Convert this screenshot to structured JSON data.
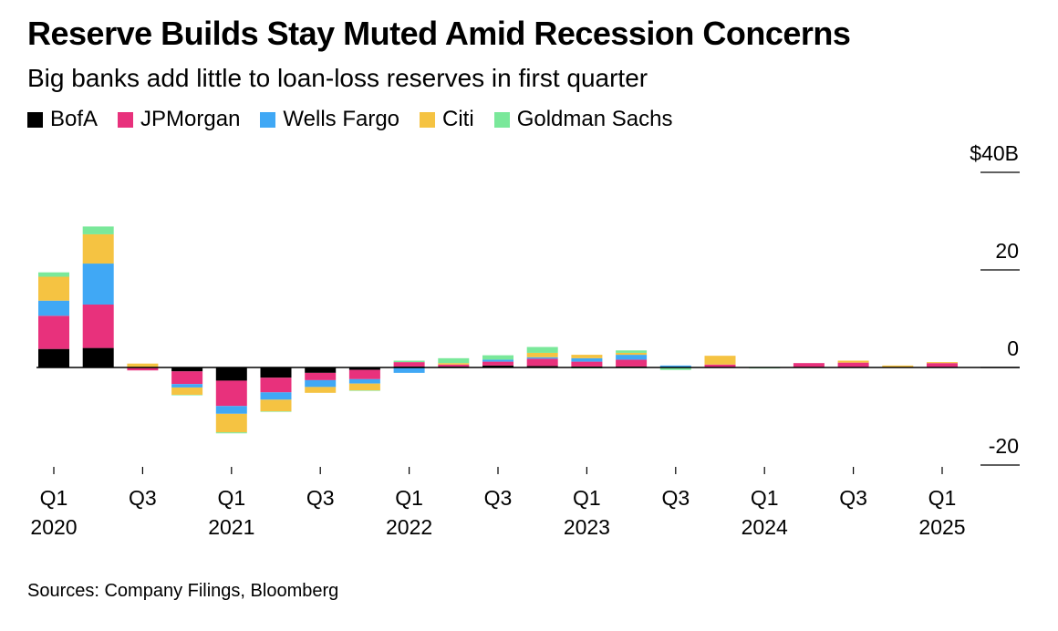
{
  "title": "Reserve Builds Stay Muted Amid Recession Concerns",
  "subtitle": "Big banks add little to loan-loss reserves in first quarter",
  "source": "Sources: Company Filings, Bloomberg",
  "legend": [
    {
      "name": "BofA",
      "color": "#000000"
    },
    {
      "name": "JPMorgan",
      "color": "#e8317c"
    },
    {
      "name": "Wells Fargo",
      "color": "#40a8f5"
    },
    {
      "name": "Citi",
      "color": "#f5c342"
    },
    {
      "name": "Goldman Sachs",
      "color": "#7ae89a"
    }
  ],
  "chart_data": {
    "type": "bar",
    "stacked": true,
    "categories": [
      "Q1 2020",
      "Q2 2020",
      "Q3 2020",
      "Q4 2020",
      "Q1 2021",
      "Q2 2021",
      "Q3 2021",
      "Q4 2021",
      "Q1 2022",
      "Q2 2022",
      "Q3 2022",
      "Q4 2022",
      "Q1 2023",
      "Q2 2023",
      "Q3 2023",
      "Q4 2023",
      "Q1 2024",
      "Q2 2024",
      "Q3 2024",
      "Q4 2024",
      "Q1 2025"
    ],
    "series": [
      {
        "name": "BofA",
        "color": "#000000",
        "values": [
          3.8,
          4.0,
          0.1,
          -0.8,
          -2.7,
          -2.1,
          -1.1,
          -0.5,
          0.2,
          0.2,
          0.4,
          0.3,
          0.2,
          0.2,
          -0.1,
          0.0,
          -0.1,
          0.0,
          0.0,
          0.0,
          0.0
        ]
      },
      {
        "name": "JPMorgan",
        "color": "#e8317c",
        "values": [
          6.8,
          8.9,
          -0.6,
          -2.6,
          -5.2,
          -3.0,
          -1.5,
          -1.9,
          0.9,
          0.4,
          0.8,
          1.5,
          1.0,
          1.4,
          0.0,
          0.6,
          0.0,
          0.9,
          1.0,
          0.0,
          0.9
        ]
      },
      {
        "name": "Wells Fargo",
        "color": "#40a8f5",
        "values": [
          3.1,
          8.4,
          0.0,
          -0.7,
          -1.6,
          -1.5,
          -1.4,
          -0.9,
          -1.1,
          0.0,
          0.4,
          0.3,
          0.7,
          1.0,
          0.4,
          0.0,
          0.0,
          0.0,
          0.0,
          0.0,
          0.0
        ]
      },
      {
        "name": "Citi",
        "color": "#f5c342",
        "values": [
          4.9,
          6.0,
          0.7,
          -1.5,
          -3.8,
          -2.4,
          -1.2,
          -1.4,
          0.0,
          0.3,
          0.0,
          0.9,
          0.7,
          0.4,
          0.0,
          1.8,
          0.0,
          0.0,
          0.4,
          0.4,
          0.2
        ]
      },
      {
        "name": "Goldman Sachs",
        "color": "#7ae89a",
        "values": [
          0.9,
          1.6,
          0.0,
          -0.1,
          -0.2,
          -0.1,
          0.0,
          -0.1,
          0.3,
          1.0,
          0.9,
          1.2,
          -0.2,
          0.5,
          -0.4,
          0.0,
          -0.1,
          0.0,
          0.0,
          0.0,
          0.0
        ]
      }
    ],
    "ylim": [
      -20,
      40
    ],
    "yticks": [
      {
        "value": 40,
        "label": "$40B"
      },
      {
        "value": 20,
        "label": "20"
      },
      {
        "value": 0,
        "label": "0"
      },
      {
        "value": -20,
        "label": "-20"
      }
    ],
    "xticks": [
      {
        "index": 0,
        "line1": "Q1",
        "line2": "2020"
      },
      {
        "index": 2,
        "line1": "Q3",
        "line2": ""
      },
      {
        "index": 4,
        "line1": "Q1",
        "line2": "2021"
      },
      {
        "index": 6,
        "line1": "Q3",
        "line2": ""
      },
      {
        "index": 8,
        "line1": "Q1",
        "line2": "2022"
      },
      {
        "index": 10,
        "line1": "Q3",
        "line2": ""
      },
      {
        "index": 12,
        "line1": "Q1",
        "line2": "2023"
      },
      {
        "index": 14,
        "line1": "Q3",
        "line2": ""
      },
      {
        "index": 16,
        "line1": "Q1",
        "line2": "2024"
      },
      {
        "index": 18,
        "line1": "Q3",
        "line2": ""
      },
      {
        "index": 20,
        "line1": "Q1",
        "line2": "2025"
      }
    ],
    "grid": false,
    "legend_position": "top-left"
  }
}
